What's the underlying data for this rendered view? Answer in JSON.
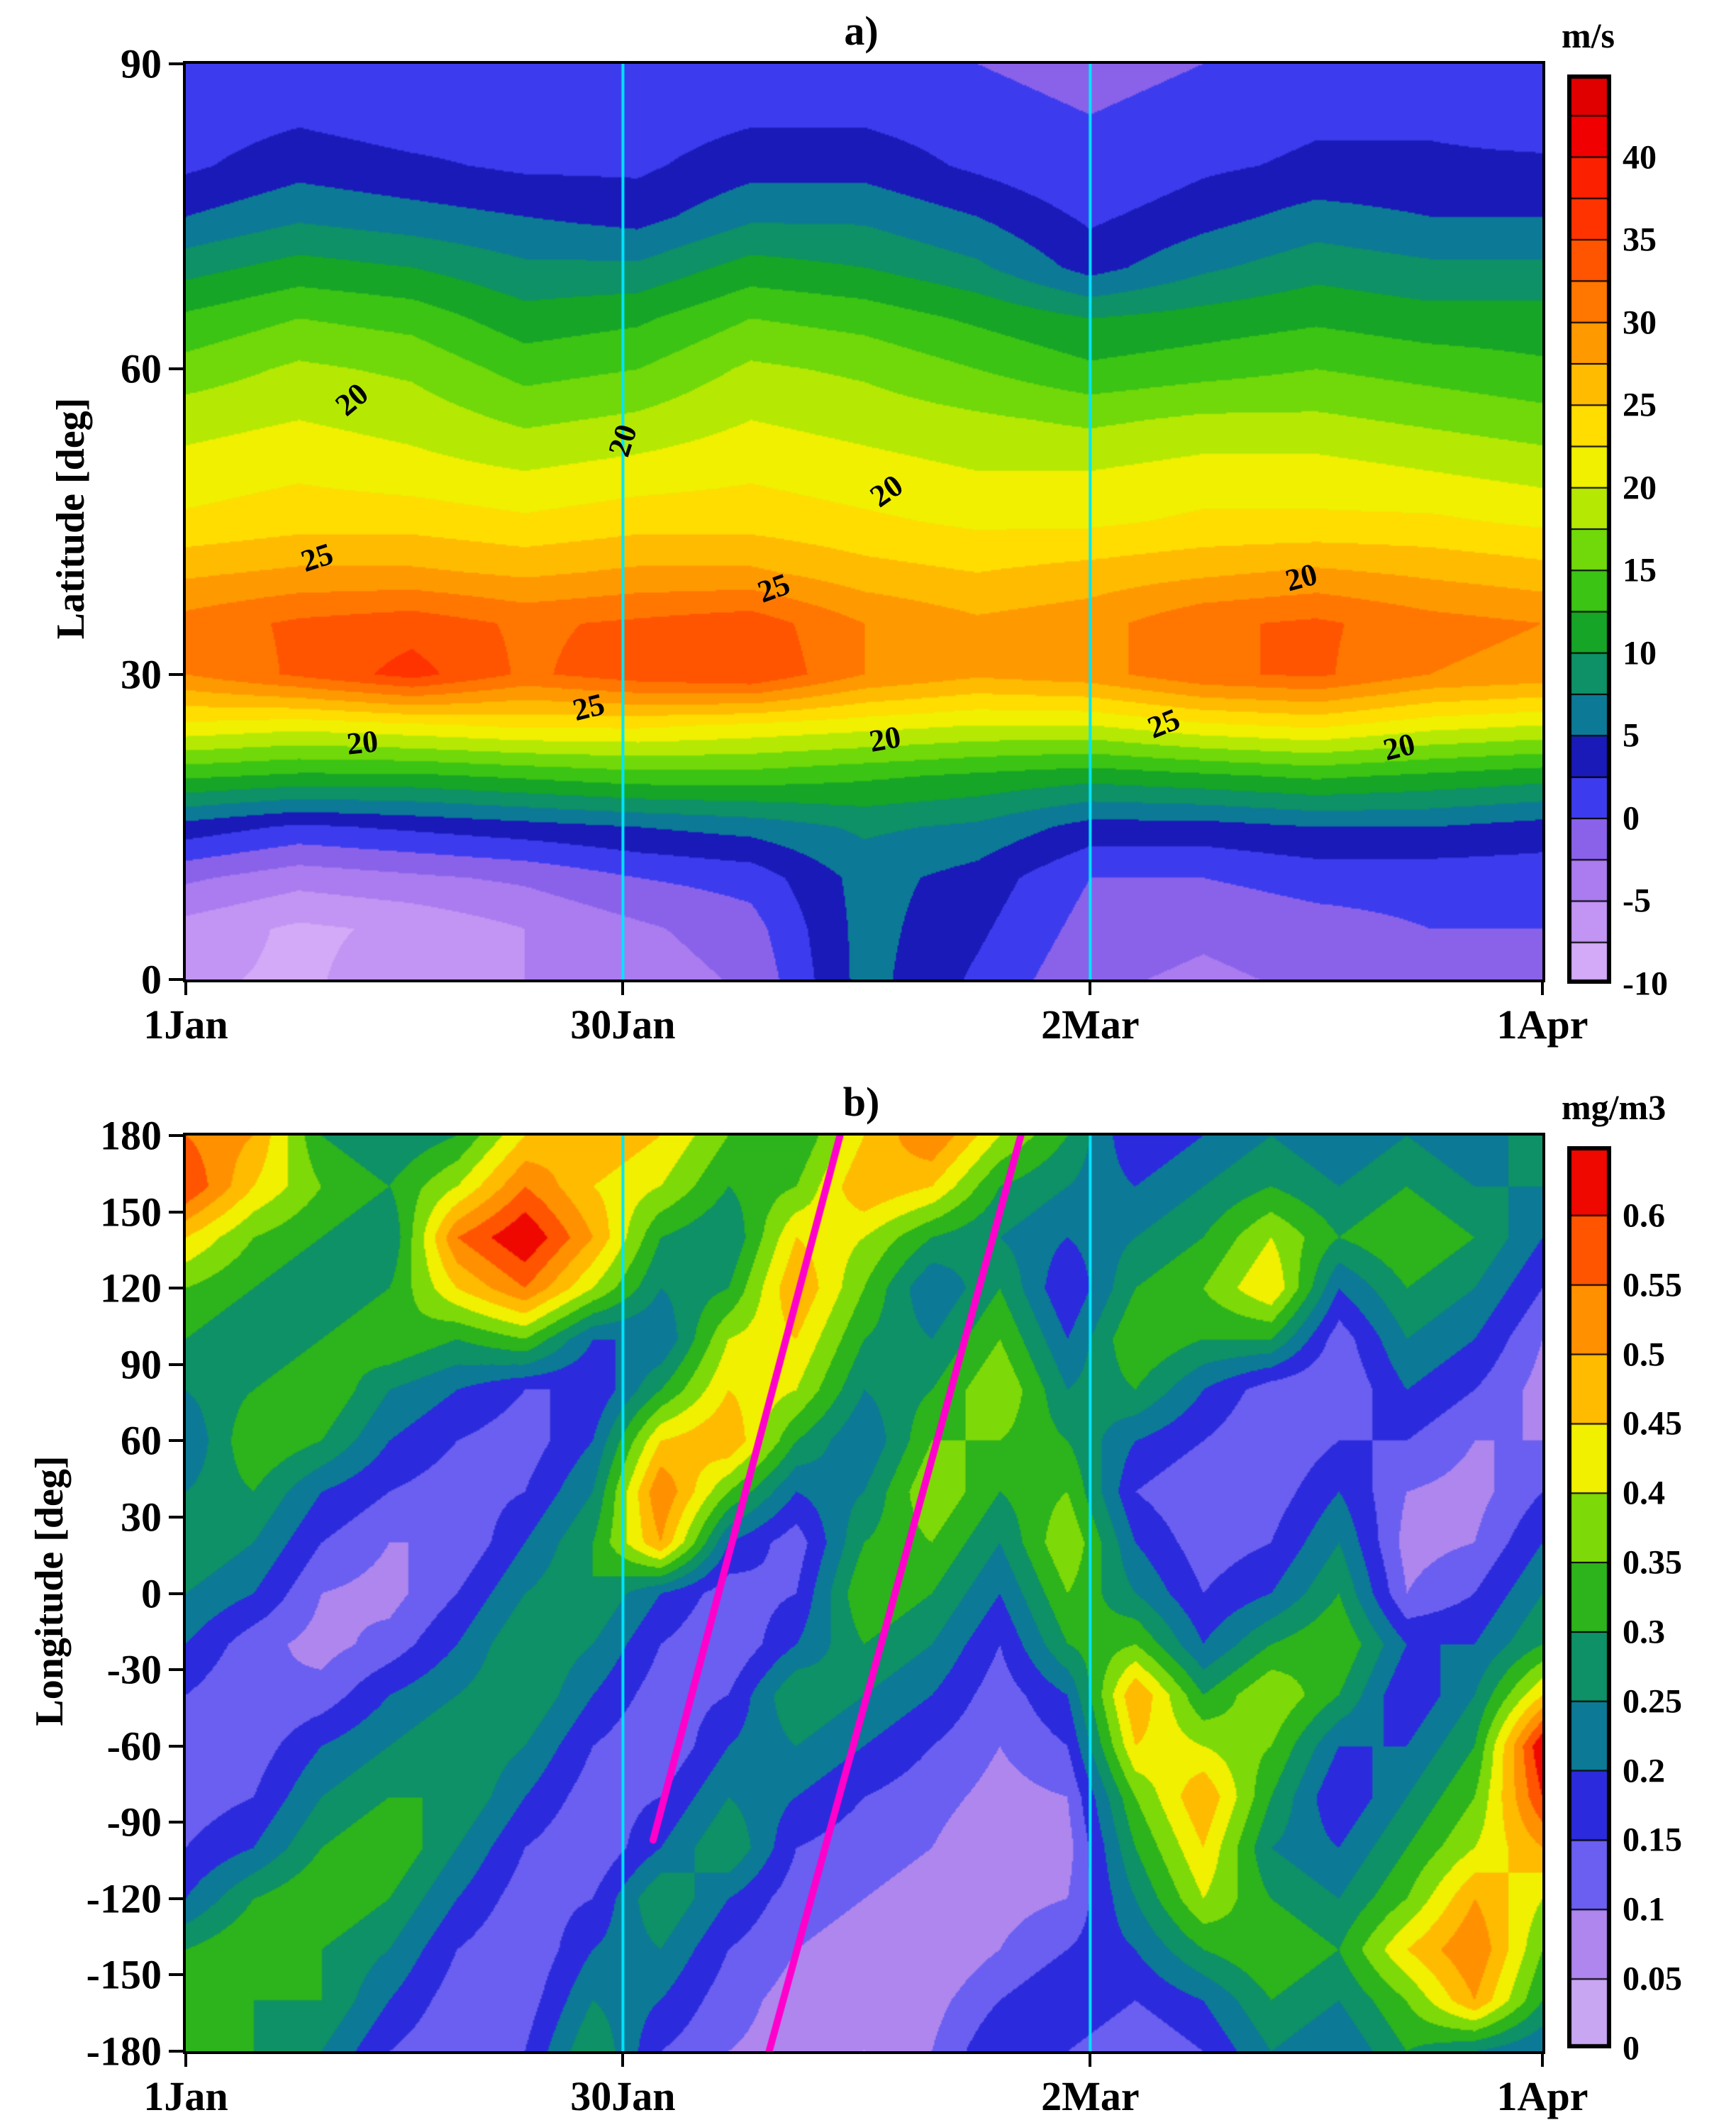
{
  "figure": {
    "background": "#ffffff"
  },
  "chart_data": [
    {
      "type": "heatmap",
      "panel": "a",
      "title": "a)",
      "ylabel": "Latitude [deg]",
      "unit": "m/s",
      "x_range": [
        0,
        90
      ],
      "y_range": [
        0,
        90
      ],
      "x_ticks": [
        {
          "value": 0,
          "label": "1Jan"
        },
        {
          "value": 29,
          "label": "30Jan"
        },
        {
          "value": 60,
          "label": "2Mar"
        },
        {
          "value": 90,
          "label": "1Apr"
        }
      ],
      "y_ticks": [
        {
          "value": 90,
          "label": "90"
        },
        {
          "value": 60,
          "label": "60"
        },
        {
          "value": 30,
          "label": "30"
        },
        {
          "value": 0,
          "label": "0"
        }
      ],
      "reference_lines": {
        "color": "#00e6ff",
        "x_values": [
          29,
          60
        ]
      },
      "colorbar": {
        "levels": [
          -10,
          -7.5,
          -5,
          -2.5,
          0,
          2.5,
          5,
          7.5,
          10,
          12.5,
          15,
          17.5,
          20,
          22.5,
          25,
          27.5,
          30,
          32.5,
          35,
          37.5,
          40,
          42.5,
          45
        ],
        "colors": [
          "#d2aaf7",
          "#c294f3",
          "#aa7cf0",
          "#8a62ea",
          "#3c3cee",
          "#1a1ab8",
          "#0c7a96",
          "#0e9166",
          "#16a527",
          "#3bc414",
          "#71d909",
          "#b5e903",
          "#f0f000",
          "#ffdd00",
          "#ffbb00",
          "#ff9900",
          "#ff7700",
          "#ff5500",
          "#ff3300",
          "#fb2000",
          "#f00000",
          "#e00000"
        ],
        "tick_values": [
          40,
          35,
          30,
          25,
          20,
          15,
          10,
          5,
          0,
          -5,
          -10
        ],
        "tick_labels": [
          "40",
          "35",
          "30",
          "25",
          "20",
          "15",
          "10",
          "5",
          "0",
          "-5",
          "-10"
        ]
      },
      "contour_labels": [
        {
          "text": "20",
          "x": 11,
          "y": 57,
          "angle": -40
        },
        {
          "text": "20",
          "x": 29,
          "y": 53,
          "angle": -72
        },
        {
          "text": "20",
          "x": 46.5,
          "y": 48,
          "angle": -35
        },
        {
          "text": "20",
          "x": 74,
          "y": 39.5,
          "angle": -15
        },
        {
          "text": "25",
          "x": 8.7,
          "y": 41.5,
          "angle": -18
        },
        {
          "text": "25",
          "x": 39,
          "y": 38.5,
          "angle": -20
        },
        {
          "text": "25",
          "x": 26.7,
          "y": 26.8,
          "angle": -14
        },
        {
          "text": "25",
          "x": 64.9,
          "y": 25.2,
          "angle": -22
        },
        {
          "text": "20",
          "x": 11.7,
          "y": 23.3,
          "angle": -6
        },
        {
          "text": "20",
          "x": 46.4,
          "y": 23.6,
          "angle": -10
        },
        {
          "text": "20",
          "x": 80.5,
          "y": 22.9,
          "angle": -14
        }
      ],
      "grid": {
        "x": [
          0,
          7.5,
          15,
          22.5,
          30,
          37.5,
          45,
          52.5,
          60,
          67.5,
          75,
          82.5,
          90
        ],
        "y": [
          0,
          5,
          10,
          15,
          20,
          25,
          30,
          35,
          40,
          45,
          50,
          55,
          60,
          65,
          70,
          75,
          80,
          85,
          90
        ],
        "values": [
          [
            -7,
            -8,
            -6,
            -5,
            -4,
            -2,
            6,
            2,
            -2,
            -3,
            -2,
            -1,
            0
          ],
          [
            -6,
            -8,
            -7,
            -5,
            -3,
            -1,
            6,
            3,
            -1,
            -2,
            -1,
            0,
            0
          ],
          [
            -2,
            -4,
            -3,
            -2,
            0,
            1,
            6,
            4,
            0,
            0,
            1,
            1,
            1
          ],
          [
            4,
            2,
            3,
            4,
            5,
            6,
            8,
            7,
            4,
            4,
            5,
            5,
            4
          ],
          [
            13,
            12,
            12,
            13,
            14,
            14,
            13,
            12,
            11,
            12,
            13,
            12,
            11
          ],
          [
            22,
            21,
            22,
            23,
            23,
            22,
            21,
            20,
            20,
            22,
            23,
            21,
            20
          ],
          [
            30,
            33,
            36,
            32,
            34,
            35,
            30,
            28,
            29,
            32,
            33,
            30,
            29
          ],
          [
            31,
            33,
            34,
            32,
            33,
            34,
            30,
            28,
            29,
            32,
            33,
            31,
            30
          ],
          [
            27,
            28,
            28,
            27,
            28,
            28,
            26,
            25,
            26,
            27,
            28,
            27,
            26
          ],
          [
            23,
            24,
            24,
            23,
            24,
            24,
            23,
            22,
            22,
            23,
            23,
            23,
            22
          ],
          [
            21,
            22,
            21,
            20,
            21,
            22,
            21,
            20,
            20,
            21,
            21,
            20,
            19
          ],
          [
            19,
            20,
            19,
            17,
            18,
            20,
            19,
            18,
            17,
            18,
            18,
            17,
            16
          ],
          [
            16,
            18,
            17,
            14,
            15,
            18,
            17,
            15,
            13,
            14,
            15,
            14,
            13
          ],
          [
            13,
            15,
            14,
            11,
            12,
            15,
            14,
            12,
            10,
            11,
            12,
            11,
            11
          ],
          [
            9,
            11,
            10,
            8,
            8,
            11,
            10,
            8,
            4,
            7,
            9,
            8,
            8
          ],
          [
            5,
            7,
            6,
            5,
            4,
            7,
            7,
            5,
            2,
            4,
            6,
            5,
            5
          ],
          [
            2,
            4,
            3,
            2,
            2,
            4,
            4,
            2,
            0,
            2,
            3,
            3,
            3
          ],
          [
            1,
            2,
            1,
            1,
            1,
            2,
            2,
            1,
            0,
            1,
            2,
            2,
            1
          ],
          [
            0,
            1,
            1,
            0,
            0,
            1,
            1,
            0,
            -1,
            0,
            1,
            1,
            0
          ]
        ]
      }
    },
    {
      "type": "heatmap",
      "panel": "b",
      "title": "b)",
      "ylabel": "Longitude [deg]",
      "unit": "mg/m3",
      "x_range": [
        0,
        90
      ],
      "y_range": [
        -180,
        180
      ],
      "x_ticks": [
        {
          "value": 0,
          "label": "1Jan"
        },
        {
          "value": 29,
          "label": "30Jan"
        },
        {
          "value": 60,
          "label": "2Mar"
        },
        {
          "value": 90,
          "label": "1Apr"
        }
      ],
      "y_ticks": [
        {
          "value": 180,
          "label": "180"
        },
        {
          "value": 150,
          "label": "150"
        },
        {
          "value": 120,
          "label": "120"
        },
        {
          "value": 90,
          "label": "90"
        },
        {
          "value": 60,
          "label": "60"
        },
        {
          "value": 30,
          "label": "30"
        },
        {
          "value": 0,
          "label": "0"
        },
        {
          "value": -30,
          "label": "-30"
        },
        {
          "value": -60,
          "label": "-60"
        },
        {
          "value": -90,
          "label": "-90"
        },
        {
          "value": -120,
          "label": "-120"
        },
        {
          "value": -150,
          "label": "-150"
        },
        {
          "value": -180,
          "label": "-180"
        }
      ],
      "reference_lines": {
        "color": "#00e6ff",
        "x_values": [
          29,
          60
        ]
      },
      "trajectory_lines": {
        "color": "#ff00cc",
        "lines": [
          [
            [
              31,
              -97
            ],
            [
              43.4,
              180
            ]
          ],
          [
            [
              38.7,
              -180
            ],
            [
              55.4,
              180
            ]
          ]
        ]
      },
      "colorbar": {
        "levels": [
          0,
          0.05,
          0.1,
          0.15,
          0.2,
          0.25,
          0.3,
          0.35,
          0.4,
          0.45,
          0.5,
          0.55,
          0.6,
          0.65
        ],
        "colors": [
          "#c9a6f2",
          "#ae86ee",
          "#6a5ff0",
          "#2b2bdd",
          "#0c7a96",
          "#0e9166",
          "#2db31c",
          "#7ed908",
          "#f0f000",
          "#ffbb00",
          "#ff9100",
          "#ff5500",
          "#ee0800"
        ],
        "tick_values": [
          0.6,
          0.55,
          0.5,
          0.45,
          0.4,
          0.35,
          0.3,
          0.25,
          0.2,
          0.15,
          0.1,
          0.05,
          0
        ],
        "tick_labels": [
          "0.6",
          "0.55",
          "0.5",
          "0.45",
          "0.4",
          "0.35",
          "0.3",
          "0.25",
          "0.2",
          "0.15",
          "0.1",
          "0.05",
          "0"
        ]
      },
      "contour_labels": [],
      "grid": {
        "x": [
          0,
          4.5,
          9,
          13.5,
          18,
          22.5,
          27,
          31.5,
          36,
          40.5,
          45,
          49.5,
          54,
          58.5,
          63,
          67.5,
          72,
          76.5,
          81,
          85.5,
          90
        ],
        "y": [
          -180,
          -160,
          -140,
          -120,
          -100,
          -80,
          -60,
          -40,
          -20,
          0,
          20,
          40,
          60,
          80,
          100,
          120,
          140,
          160,
          180
        ],
        "values": [
          [
            0.3,
            0.3,
            0.25,
            0.15,
            0.1,
            0.15,
            0.3,
            0.15,
            0.1,
            0.08,
            0.05,
            0.1,
            0.2,
            0.15,
            0.1,
            0.15,
            0.25,
            0.2,
            0.3,
            0.25,
            0.2
          ],
          [
            0.35,
            0.3,
            0.3,
            0.2,
            0.12,
            0.12,
            0.25,
            0.2,
            0.12,
            0.08,
            0.05,
            0.08,
            0.15,
            0.2,
            0.15,
            0.2,
            0.3,
            0.25,
            0.35,
            0.5,
            0.3
          ],
          [
            0.3,
            0.35,
            0.3,
            0.25,
            0.15,
            0.1,
            0.2,
            0.25,
            0.15,
            0.1,
            0.08,
            0.05,
            0.1,
            0.15,
            0.2,
            0.3,
            0.35,
            0.3,
            0.45,
            0.55,
            0.35
          ],
          [
            0.2,
            0.3,
            0.35,
            0.3,
            0.2,
            0.12,
            0.15,
            0.3,
            0.2,
            0.12,
            0.1,
            0.08,
            0.08,
            0.1,
            0.25,
            0.4,
            0.3,
            0.25,
            0.35,
            0.5,
            0.4
          ],
          [
            0.15,
            0.2,
            0.3,
            0.35,
            0.25,
            0.15,
            0.1,
            0.2,
            0.3,
            0.15,
            0.12,
            0.1,
            0.05,
            0.08,
            0.3,
            0.45,
            0.25,
            0.2,
            0.3,
            0.4,
            0.5
          ],
          [
            0.12,
            0.15,
            0.25,
            0.3,
            0.3,
            0.2,
            0.12,
            0.15,
            0.25,
            0.2,
            0.15,
            0.12,
            0.08,
            0.1,
            0.35,
            0.5,
            0.3,
            0.15,
            0.25,
            0.35,
            0.6
          ],
          [
            0.1,
            0.12,
            0.2,
            0.25,
            0.3,
            0.25,
            0.15,
            0.1,
            0.2,
            0.25,
            0.2,
            0.15,
            0.1,
            0.15,
            0.45,
            0.4,
            0.35,
            0.2,
            0.2,
            0.3,
            0.65
          ],
          [
            0.15,
            0.1,
            0.12,
            0.2,
            0.25,
            0.3,
            0.2,
            0.12,
            0.15,
            0.3,
            0.25,
            0.2,
            0.12,
            0.2,
            0.5,
            0.3,
            0.4,
            0.3,
            0.15,
            0.25,
            0.45
          ],
          [
            0.2,
            0.12,
            0.08,
            0.12,
            0.2,
            0.3,
            0.25,
            0.15,
            0.1,
            0.2,
            0.3,
            0.25,
            0.15,
            0.3,
            0.35,
            0.2,
            0.3,
            0.35,
            0.2,
            0.2,
            0.3
          ],
          [
            0.25,
            0.2,
            0.1,
            0.08,
            0.15,
            0.25,
            0.3,
            0.2,
            0.12,
            0.15,
            0.35,
            0.3,
            0.2,
            0.35,
            0.25,
            0.15,
            0.2,
            0.3,
            0.1,
            0.15,
            0.25
          ],
          [
            0.3,
            0.25,
            0.15,
            0.1,
            0.1,
            0.2,
            0.3,
            0.5,
            0.2,
            0.12,
            0.3,
            0.35,
            0.25,
            0.4,
            0.2,
            0.12,
            0.15,
            0.25,
            0.08,
            0.1,
            0.2
          ],
          [
            0.25,
            0.3,
            0.2,
            0.15,
            0.12,
            0.15,
            0.25,
            0.55,
            0.35,
            0.2,
            0.25,
            0.4,
            0.3,
            0.35,
            0.15,
            0.1,
            0.12,
            0.2,
            0.1,
            0.08,
            0.15
          ],
          [
            0.2,
            0.35,
            0.3,
            0.2,
            0.15,
            0.12,
            0.2,
            0.45,
            0.5,
            0.3,
            0.2,
            0.35,
            0.35,
            0.3,
            0.2,
            0.15,
            0.1,
            0.15,
            0.15,
            0.1,
            0.1
          ],
          [
            0.25,
            0.3,
            0.35,
            0.25,
            0.2,
            0.15,
            0.15,
            0.3,
            0.45,
            0.4,
            0.25,
            0.3,
            0.4,
            0.25,
            0.3,
            0.2,
            0.12,
            0.1,
            0.2,
            0.15,
            0.08
          ],
          [
            0.3,
            0.25,
            0.3,
            0.35,
            0.3,
            0.35,
            0.2,
            0.2,
            0.4,
            0.45,
            0.3,
            0.25,
            0.35,
            0.2,
            0.35,
            0.3,
            0.3,
            0.12,
            0.25,
            0.2,
            0.1
          ],
          [
            0.35,
            0.3,
            0.25,
            0.3,
            0.45,
            0.55,
            0.4,
            0.25,
            0.3,
            0.5,
            0.35,
            0.2,
            0.3,
            0.15,
            0.3,
            0.35,
            0.45,
            0.2,
            0.3,
            0.25,
            0.15
          ],
          [
            0.45,
            0.35,
            0.3,
            0.25,
            0.55,
            0.65,
            0.5,
            0.3,
            0.25,
            0.45,
            0.4,
            0.3,
            0.25,
            0.2,
            0.25,
            0.3,
            0.4,
            0.3,
            0.35,
            0.3,
            0.2
          ],
          [
            0.6,
            0.45,
            0.35,
            0.3,
            0.4,
            0.55,
            0.45,
            0.4,
            0.3,
            0.35,
            0.5,
            0.45,
            0.3,
            0.25,
            0.2,
            0.25,
            0.3,
            0.25,
            0.3,
            0.25,
            0.25
          ],
          [
            0.55,
            0.5,
            0.3,
            0.25,
            0.3,
            0.45,
            0.5,
            0.45,
            0.35,
            0.3,
            0.45,
            0.55,
            0.4,
            0.3,
            0.15,
            0.2,
            0.25,
            0.2,
            0.25,
            0.2,
            0.3
          ]
        ]
      }
    }
  ]
}
